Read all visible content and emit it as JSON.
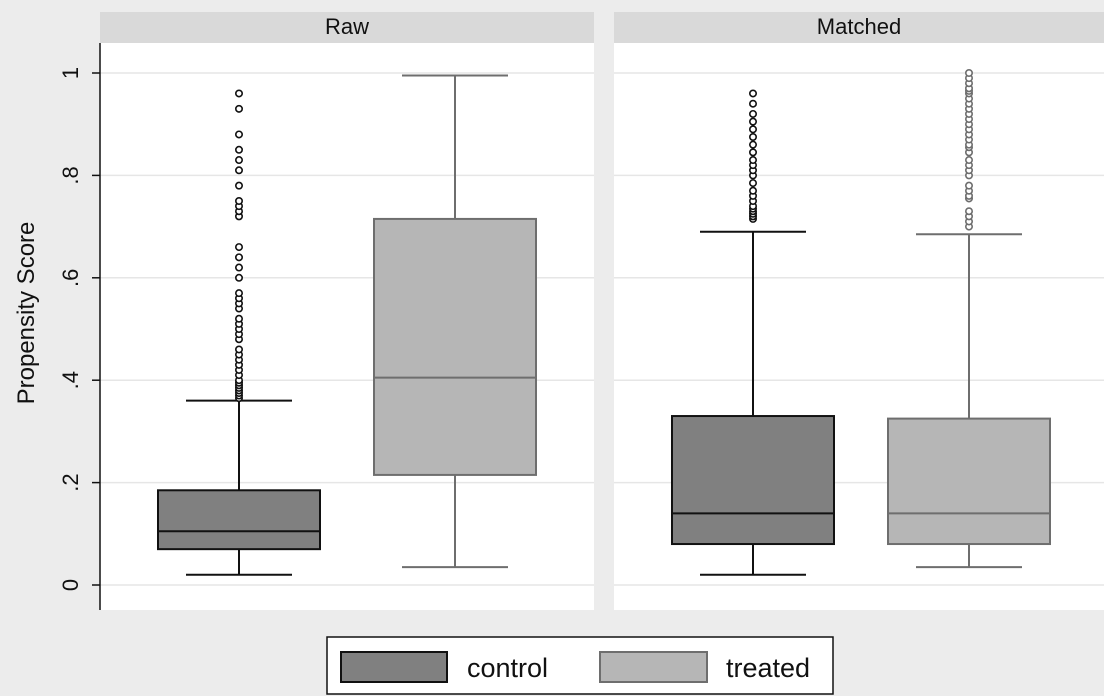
{
  "chart_data": {
    "type": "box",
    "ylabel": "Propensity Score",
    "ylim": [
      0,
      1
    ],
    "yticks": [
      {
        "value": 0,
        "label": "0"
      },
      {
        "value": 0.2,
        "label": ".2"
      },
      {
        "value": 0.4,
        "label": ".4"
      },
      {
        "value": 0.6,
        "label": ".6"
      },
      {
        "value": 0.8,
        "label": ".8"
      },
      {
        "value": 1,
        "label": "1"
      }
    ],
    "grid": true,
    "legend_position": "bottom",
    "series": [
      {
        "name": "control",
        "color": "#808080",
        "edge": "#111111"
      },
      {
        "name": "treated",
        "color": "#b6b6b6",
        "edge": "#6e6e6e"
      }
    ],
    "panels": [
      {
        "title": "Raw",
        "boxes": [
          {
            "series": "control",
            "whisker_low": 0.02,
            "q1": 0.07,
            "median": 0.105,
            "q3": 0.185,
            "whisker_high": 0.36,
            "outliers": [
              0.365,
              0.37,
              0.375,
              0.38,
              0.385,
              0.39,
              0.395,
              0.4,
              0.41,
              0.42,
              0.43,
              0.44,
              0.45,
              0.46,
              0.48,
              0.49,
              0.5,
              0.51,
              0.52,
              0.54,
              0.55,
              0.56,
              0.57,
              0.6,
              0.62,
              0.64,
              0.66,
              0.72,
              0.73,
              0.74,
              0.75,
              0.78,
              0.81,
              0.83,
              0.85,
              0.88,
              0.93,
              0.96
            ]
          },
          {
            "series": "treated",
            "whisker_low": 0.035,
            "q1": 0.215,
            "median": 0.405,
            "q3": 0.715,
            "whisker_high": 0.995,
            "outliers": []
          }
        ]
      },
      {
        "title": "Matched",
        "boxes": [
          {
            "series": "control",
            "whisker_low": 0.02,
            "q1": 0.08,
            "median": 0.14,
            "q3": 0.33,
            "whisker_high": 0.69,
            "outliers": [
              0.715,
              0.72,
              0.725,
              0.73,
              0.735,
              0.74,
              0.75,
              0.76,
              0.77,
              0.785,
              0.8,
              0.81,
              0.82,
              0.83,
              0.845,
              0.86,
              0.875,
              0.89,
              0.905,
              0.92,
              0.94,
              0.96
            ]
          },
          {
            "series": "treated",
            "whisker_low": 0.035,
            "q1": 0.08,
            "median": 0.14,
            "q3": 0.325,
            "whisker_high": 0.685,
            "outliers": [
              0.7,
              0.71,
              0.72,
              0.73,
              0.755,
              0.76,
              0.77,
              0.78,
              0.8,
              0.81,
              0.82,
              0.83,
              0.845,
              0.855,
              0.86,
              0.87,
              0.88,
              0.89,
              0.9,
              0.91,
              0.92,
              0.93,
              0.94,
              0.95,
              0.96,
              0.965,
              0.97,
              0.98,
              0.99,
              1.0
            ]
          }
        ]
      }
    ]
  }
}
